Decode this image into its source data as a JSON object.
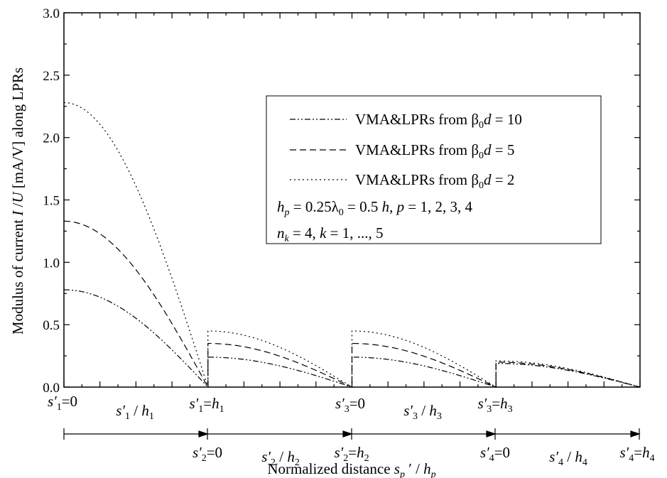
{
  "chart_data": {
    "type": "line",
    "title": "",
    "ylabel": "Modulus of current I /U [mA/V] along LPRs",
    "xlabel": "Normalized distance s_p' / h_p",
    "ylim": [
      0,
      3.0
    ],
    "xlim": [
      0,
      4
    ],
    "y_ticks": [
      "0.0",
      "0.5",
      "1.0",
      "1.5",
      "2.0",
      "2.5",
      "3.0"
    ],
    "legend": {
      "placement": "top-right",
      "entries": [
        {
          "label": "VMA&LPRs from β0d = 10",
          "style": "dash-dot-dot"
        },
        {
          "label": "VMA&LPRs from β0d = 5",
          "style": "dashed"
        },
        {
          "label": "VMA&LPRs from β0d = 2",
          "style": "dotted"
        }
      ],
      "notes": [
        "hp = 0.25λ0 = 0.5 h,   p = 1, 2, 3, 4",
        "nk = 4,  k = 1, ..., 5"
      ]
    },
    "series": [
      {
        "name": "VMA&LPRs from β0d = 10",
        "segments": [
          {
            "start": 0.78,
            "shape": "cosine"
          },
          {
            "start": 0.24,
            "shape": "cosine"
          },
          {
            "start": 0.24,
            "shape": "cosine"
          },
          {
            "start": 0.19,
            "shape": "cosine"
          }
        ]
      },
      {
        "name": "VMA&LPRs from β0d = 5",
        "segments": [
          {
            "start": 1.33,
            "shape": "cosine"
          },
          {
            "start": 0.35,
            "shape": "cosine"
          },
          {
            "start": 0.35,
            "shape": "cosine"
          },
          {
            "start": 0.2,
            "shape": "cosine"
          }
        ]
      },
      {
        "name": "VMA&LPRs from β0d = 2",
        "segments": [
          {
            "start": 2.28,
            "shape": "cosine"
          },
          {
            "start": 0.45,
            "shape": "cosine"
          },
          {
            "start": 0.45,
            "shape": "cosine"
          },
          {
            "start": 0.21,
            "shape": "cosine"
          }
        ]
      }
    ],
    "annotations": {
      "upper_row": [
        {
          "label": "s'1=0"
        },
        {
          "label": "s'1 / h1"
        },
        {
          "label": "s'1=h1"
        },
        {
          "label": "s'3=0"
        },
        {
          "label": "s'3 / h3"
        },
        {
          "label": "s'3=h3"
        }
      ],
      "lower_row": [
        {
          "label": "s'2=0"
        },
        {
          "label": "s'2 / h2"
        },
        {
          "label": "s'2=h2"
        },
        {
          "label": "s'4=0"
        },
        {
          "label": "s'4 / h4"
        },
        {
          "label": "s'4=h4"
        }
      ]
    }
  }
}
